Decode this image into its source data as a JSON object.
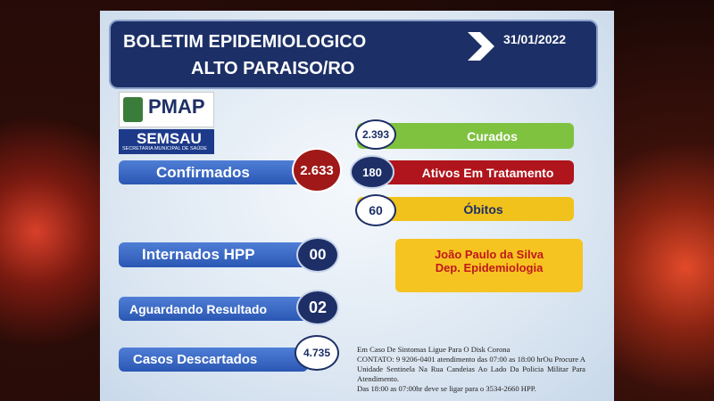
{
  "header": {
    "title": [
      "BOLETIM  EPIDEMIOLOGICO",
      "ALTO PARAISO/RO"
    ],
    "date": "31/01/2022"
  },
  "logos": {
    "pmap": "PMAP",
    "semsau": {
      "name": "SEMSAU",
      "subtitle": "SECRETARIA MUNICIPAL DE SAÚDE"
    }
  },
  "stats": {
    "confirmados": {
      "label": "Confirmados",
      "value": "2.633"
    },
    "curados": {
      "label": "Curados",
      "value": "2.393"
    },
    "ativos": {
      "label": "Ativos Em Tratamento",
      "value": "180"
    },
    "obitos": {
      "label": "Óbitos",
      "value": "60"
    },
    "internados": {
      "label": "Internados HPP",
      "value": "00"
    },
    "aguardando": {
      "label": "Aguardando Resultado",
      "value": "02"
    },
    "descartados": {
      "label": "Casos Descartados",
      "value": "4.735"
    }
  },
  "responsible": {
    "name": "João Paulo da Silva",
    "role": "Dep. Epidemiologia"
  },
  "footer": [
    "Em Caso De Sintomas Ligue Para O Disk Corona",
    "CONTATO: 9 9206-0401 atendimento das 07:00 as 18:00 hrOu Procure A Unidade Sentinela Na Rua Candeias Ao Lado Da Policia Militar Para Atendimento.",
    "Das 18:00 as 07:00hr deve se ligar para o 3534-2660 HPP."
  ]
}
